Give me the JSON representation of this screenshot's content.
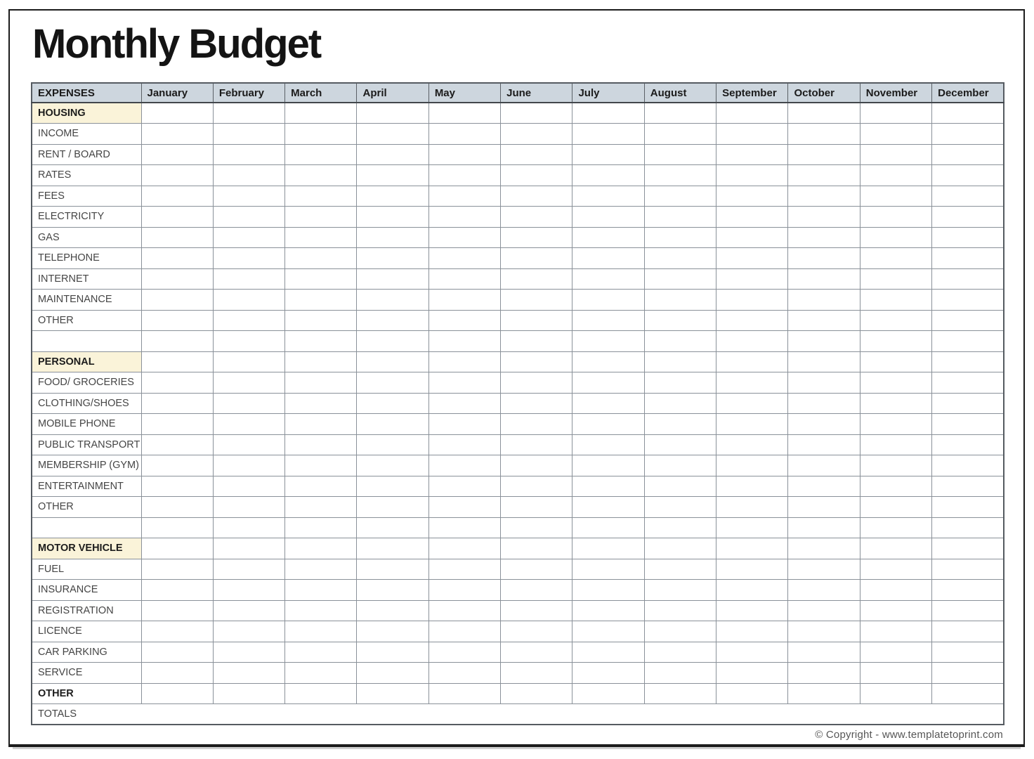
{
  "document": {
    "title": "Monthly Budget",
    "footer_copyright": "© Copyright - www.templatetoprint.com"
  },
  "table": {
    "corner_header": "EXPENSES",
    "month_headers": [
      "January",
      "February",
      "March",
      "April",
      "May",
      "June",
      "July",
      "August",
      "September",
      "October",
      "November",
      "December"
    ],
    "rows": [
      {
        "label": "HOUSING",
        "type": "section"
      },
      {
        "label": "INCOME",
        "type": "item"
      },
      {
        "label": "RENT / BOARD",
        "type": "item"
      },
      {
        "label": "RATES",
        "type": "item"
      },
      {
        "label": "FEES",
        "type": "item"
      },
      {
        "label": "ELECTRICITY",
        "type": "item"
      },
      {
        "label": "GAS",
        "type": "item"
      },
      {
        "label": "TELEPHONE",
        "type": "item"
      },
      {
        "label": "INTERNET",
        "type": "item"
      },
      {
        "label": "MAINTENANCE",
        "type": "item"
      },
      {
        "label": "OTHER",
        "type": "item"
      },
      {
        "label": "",
        "type": "empty"
      },
      {
        "label": "PERSONAL",
        "type": "section"
      },
      {
        "label": "FOOD/ GROCERIES",
        "type": "item"
      },
      {
        "label": "CLOTHING/SHOES",
        "type": "item"
      },
      {
        "label": "MOBILE PHONE",
        "type": "item"
      },
      {
        "label": "PUBLIC TRANSPORT",
        "type": "item"
      },
      {
        "label": "MEMBERSHIP (GYM)",
        "type": "item"
      },
      {
        "label": "ENTERTAINMENT",
        "type": "item"
      },
      {
        "label": "OTHER",
        "type": "item"
      },
      {
        "label": "",
        "type": "empty"
      },
      {
        "label": "MOTOR VEHICLE",
        "type": "section"
      },
      {
        "label": "FUEL",
        "type": "item"
      },
      {
        "label": "INSURANCE",
        "type": "item"
      },
      {
        "label": "REGISTRATION",
        "type": "item"
      },
      {
        "label": "LICENCE",
        "type": "item"
      },
      {
        "label": "CAR PARKING",
        "type": "item"
      },
      {
        "label": "SERVICE",
        "type": "item"
      },
      {
        "label": "OTHER",
        "type": "highlight"
      },
      {
        "label": "TOTALS",
        "type": "totals"
      }
    ],
    "cell_values_note": "all month cells are blank in the template"
  },
  "layout_colors": {
    "page_border": "#1c1c1c",
    "header_bg": "#cdd6de",
    "section_bg": "#faf3d9",
    "highlight_bg": "#d7dee4",
    "grid_line": "#8a9199"
  }
}
